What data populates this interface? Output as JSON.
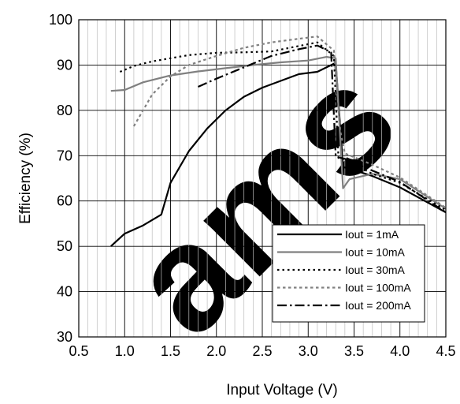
{
  "chart_data": {
    "type": "line",
    "title": "",
    "xlabel": "Input Voltage (V)",
    "ylabel": "Efficiency (%)",
    "xlim": [
      0.5,
      4.5
    ],
    "ylim": [
      30,
      100
    ],
    "xticks": [
      "0.5",
      "1.0",
      "1.5",
      "2.0",
      "2.5",
      "3.0",
      "3.5",
      "4.0",
      "4.5"
    ],
    "yticks": [
      "30",
      "40",
      "50",
      "60",
      "70",
      "80",
      "90",
      "100"
    ],
    "grid": true,
    "legend_position": "bottom-right",
    "watermark": "ams",
    "series": [
      {
        "name": "Iout = 1mA",
        "color": "#000000",
        "dash": "solid",
        "x": [
          0.85,
          1.0,
          1.2,
          1.4,
          1.5,
          1.7,
          1.9,
          2.1,
          2.3,
          2.5,
          2.7,
          2.9,
          3.1,
          3.3,
          3.38,
          3.5,
          3.7,
          4.0,
          4.5
        ],
        "y": [
          50,
          52.8,
          54.6,
          57,
          64,
          71,
          76,
          80,
          83,
          85,
          86.5,
          88,
          88.5,
          90.5,
          67.5,
          66.8,
          65.5,
          63,
          57.5
        ]
      },
      {
        "name": "Iout = 10mA",
        "color": "#808080",
        "dash": "solid",
        "x": [
          0.85,
          1.0,
          1.2,
          1.5,
          1.8,
          2.1,
          2.4,
          2.7,
          3.0,
          3.2,
          3.3,
          3.38,
          3.45,
          3.7,
          4.0,
          4.5
        ],
        "y": [
          84.3,
          84.5,
          86.2,
          87.7,
          88.6,
          89.3,
          90,
          90.6,
          91,
          91.8,
          91.5,
          62.8,
          64.8,
          66,
          64.8,
          58.3
        ]
      },
      {
        "name": "Iout = 30mA",
        "color": "#000000",
        "dash": "dot",
        "x": [
          0.95,
          1.1,
          1.3,
          1.5,
          1.7,
          2.0,
          2.3,
          2.6,
          2.9,
          3.1,
          3.28,
          3.33,
          3.4,
          3.7,
          4.0,
          4.5
        ],
        "y": [
          88.5,
          89.8,
          90.8,
          91.5,
          92.2,
          92.7,
          92.8,
          93,
          94.2,
          95,
          92,
          69.5,
          69.2,
          66,
          64,
          58
        ]
      },
      {
        "name": "Iout = 100mA",
        "color": "#808080",
        "dash": "shortdash",
        "x": [
          1.1,
          1.3,
          1.5,
          1.7,
          2.0,
          2.3,
          2.6,
          2.9,
          3.1,
          3.28,
          3.35,
          3.4,
          3.7,
          4.0,
          4.5
        ],
        "y": [
          76.5,
          83.5,
          87.5,
          90,
          92,
          93.8,
          95,
          95.8,
          96.3,
          93.2,
          75.5,
          70.5,
          68,
          65.2,
          58.5
        ]
      },
      {
        "name": "Iout = 200mA",
        "color": "#000000",
        "dash": "dashdot",
        "x": [
          1.8,
          2.0,
          2.3,
          2.6,
          2.9,
          3.1,
          3.25,
          3.3,
          3.4,
          3.7,
          4.0,
          4.5
        ],
        "y": [
          85.2,
          87,
          89.5,
          92,
          93.5,
          94.3,
          92.8,
          69.8,
          69.3,
          66.7,
          64.2,
          57.5
        ]
      }
    ]
  }
}
